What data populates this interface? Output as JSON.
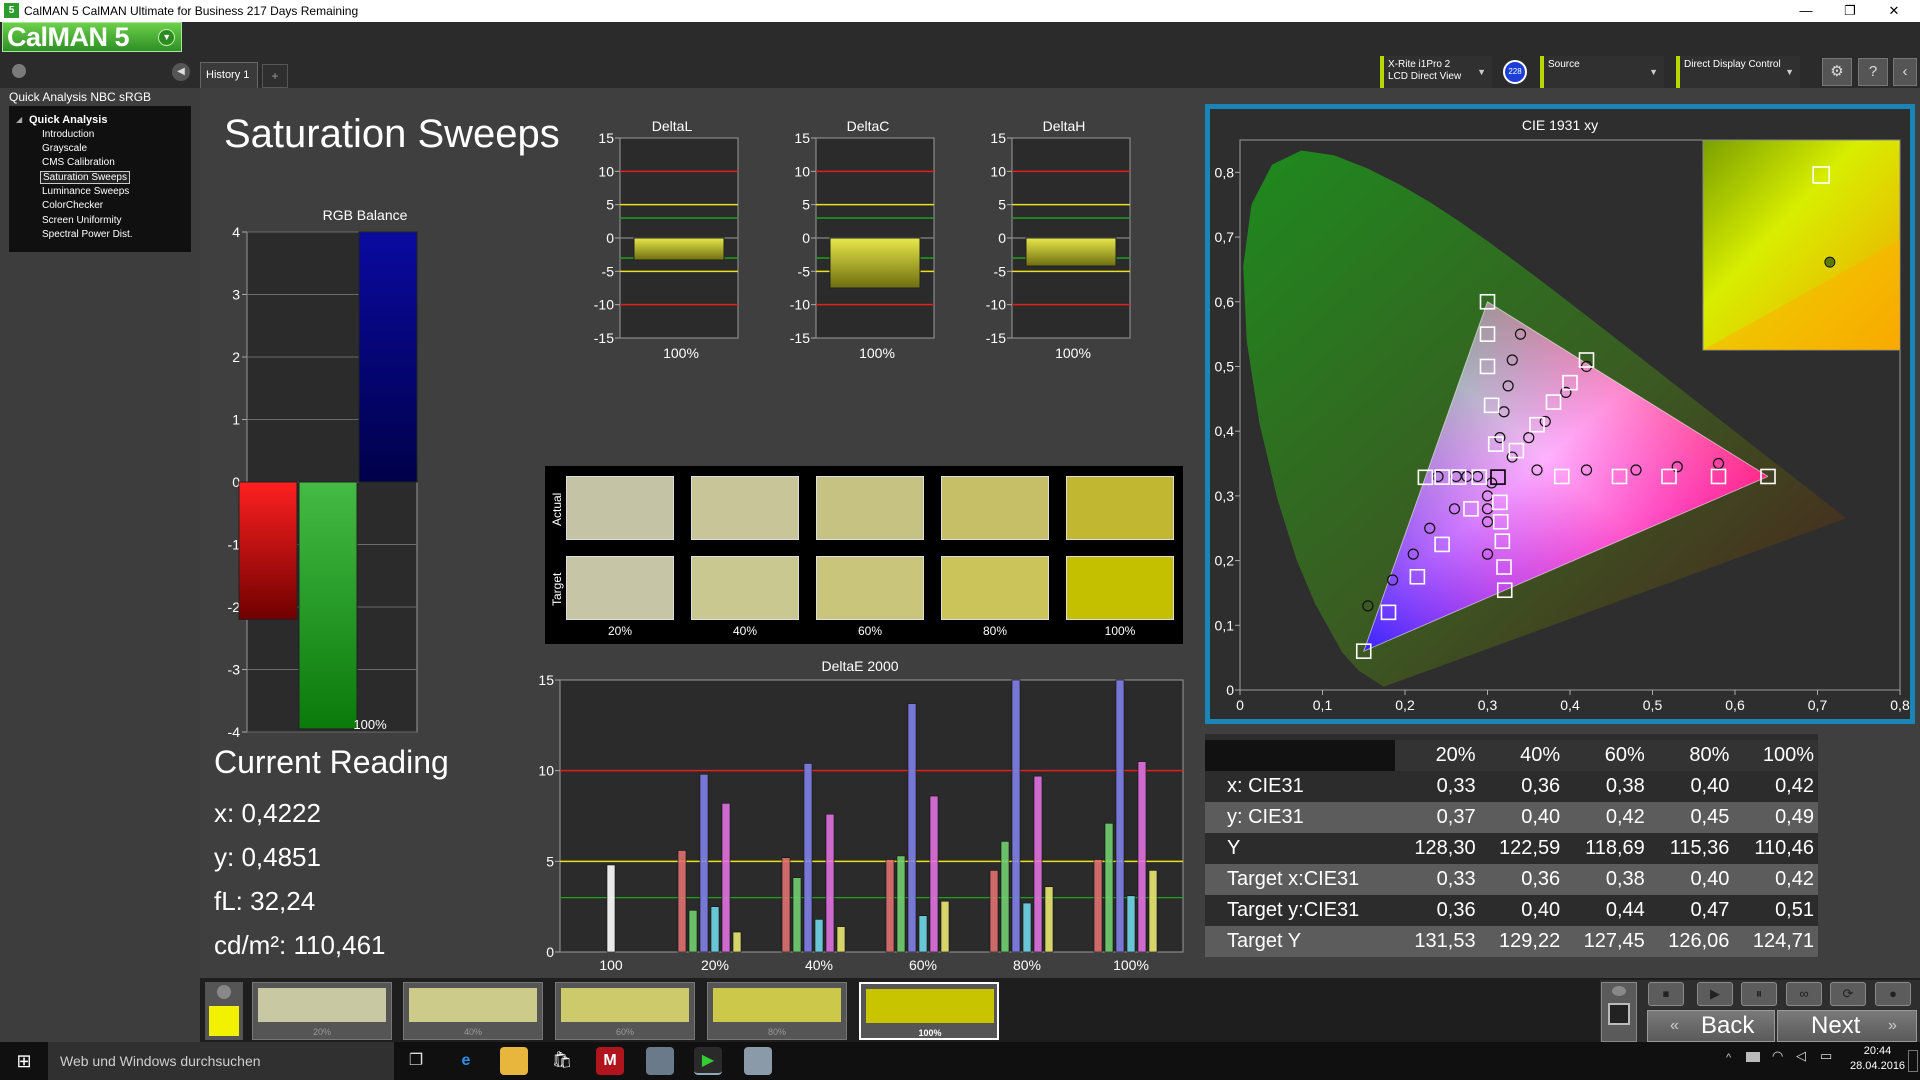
{
  "window": {
    "title": "CalMAN 5 CalMAN Ultimate for Business 217 Days Remaining",
    "app_icon": "5",
    "minimize": "—",
    "maximize": "❐",
    "close": "✕"
  },
  "logo": {
    "text": "CalMAN 5",
    "dropdown_icon": "chevron-down-icon"
  },
  "tabs": {
    "history": "History 1",
    "add": "+"
  },
  "devices": {
    "meter_line1": "X-Rite i1Pro 2",
    "meter_line2": "LCD Direct View",
    "meter_badge": "228",
    "source": "Source",
    "display": "Direct Display Control"
  },
  "toolbar": {
    "settings": "⚙",
    "help": "?",
    "collapse": "‹"
  },
  "left": {
    "workflow_title": "Quick Analysis NBC sRGB",
    "tree_head": "Quick Analysis",
    "items": [
      "Introduction",
      "Grayscale",
      "CMS Calibration",
      "Saturation Sweeps",
      "Luminance Sweeps",
      "ColorChecker",
      "Screen Uniformity",
      "Spectral Power Dist."
    ],
    "selected_index": 3
  },
  "page": {
    "title": "Saturation Sweeps"
  },
  "rgb_balance": {
    "title": "RGB Balance",
    "y_ticks": [
      "4",
      "3",
      "2",
      "1",
      "0",
      "-1",
      "-2",
      "-3",
      "-4"
    ],
    "xlabel": "100%",
    "values": {
      "red": -2.2,
      "green": -3.95,
      "blue": 4.0
    }
  },
  "delta_charts": {
    "y_ticks": [
      "15",
      "10",
      "5",
      "0",
      "-5",
      "-10",
      "-15"
    ],
    "xlabel": "100%",
    "items": [
      {
        "title": "DeltaL",
        "low": -3.3,
        "high": 0
      },
      {
        "title": "DeltaC",
        "low": -7.5,
        "high": 0
      },
      {
        "title": "DeltaH",
        "low": -4.2,
        "high": 0
      }
    ]
  },
  "swatches": {
    "actual_label": "Actual",
    "target_label": "Target",
    "labels": [
      "20%",
      "40%",
      "60%",
      "80%",
      "100%"
    ],
    "actual_colors": [
      "#c4c3a6",
      "#c8c598",
      "#c6c281",
      "#c6bf68",
      "#c2b730"
    ],
    "target_colors": [
      "#c6c5a6",
      "#cac891",
      "#c9c57a",
      "#cac45a",
      "#c4c000"
    ]
  },
  "current_reading": {
    "title": "Current Reading",
    "x": "x: 0,4222",
    "y": "y: 0,4851",
    "fl": "fL: 32,24",
    "cdm": "cd/m²: 110,461"
  },
  "chart_data": [
    {
      "type": "bar",
      "title": "DeltaE 2000",
      "categories": [
        "100",
        "20%",
        "40%",
        "60%",
        "80%",
        "100%"
      ],
      "ylim": [
        0,
        15
      ],
      "y_ticks": [
        "15",
        "10",
        "5",
        "0"
      ],
      "series": [
        {
          "color": "#ffffff",
          "values": [
            4.8,
            null,
            null,
            null,
            null,
            null
          ]
        },
        {
          "color": "#e07070",
          "values": [
            null,
            5.6,
            5.2,
            5.1,
            4.5,
            5.1
          ]
        },
        {
          "color": "#70d070",
          "values": [
            null,
            2.3,
            4.1,
            5.3,
            6.1,
            7.1
          ]
        },
        {
          "color": "#8080e8",
          "values": [
            null,
            9.8,
            10.4,
            13.7,
            15,
            15
          ]
        },
        {
          "color": "#70d8e8",
          "values": [
            null,
            2.5,
            1.8,
            2.0,
            2.7,
            3.1
          ]
        },
        {
          "color": "#e070e0",
          "values": [
            null,
            8.2,
            7.6,
            8.6,
            9.7,
            10.5
          ]
        },
        {
          "color": "#e8e870",
          "values": [
            null,
            1.1,
            1.4,
            2.8,
            3.6,
            4.5
          ]
        }
      ],
      "threshold_lines": [
        10,
        5,
        3
      ]
    },
    {
      "type": "scatter",
      "title": "CIE 1931 xy",
      "xlim": [
        0,
        0.8
      ],
      "ylim": [
        0,
        0.85
      ],
      "x_ticks": [
        "0",
        "0,1",
        "0,2",
        "0,3",
        "0,4",
        "0,5",
        "0,6",
        "0,7",
        "0,8"
      ],
      "y_ticks": [
        "0",
        "0,1",
        "0,2",
        "0,3",
        "0,4",
        "0,5",
        "0,6",
        "0,7",
        "0,8"
      ],
      "gamut": [
        [
          0.64,
          0.33
        ],
        [
          0.3,
          0.6
        ],
        [
          0.15,
          0.06
        ]
      ],
      "white": [
        0.3127,
        0.329
      ],
      "targets_white": [
        [
          0.3,
          0.6
        ],
        [
          0.3,
          0.55
        ],
        [
          0.3,
          0.5
        ],
        [
          0.305,
          0.44
        ],
        [
          0.31,
          0.38
        ],
        [
          0.64,
          0.33
        ],
        [
          0.58,
          0.33
        ],
        [
          0.52,
          0.33
        ],
        [
          0.46,
          0.33
        ],
        [
          0.39,
          0.33
        ],
        [
          0.15,
          0.06
        ],
        [
          0.18,
          0.12
        ],
        [
          0.215,
          0.175
        ],
        [
          0.245,
          0.225
        ],
        [
          0.28,
          0.28
        ],
        [
          0.42,
          0.51
        ],
        [
          0.4,
          0.475
        ],
        [
          0.38,
          0.445
        ],
        [
          0.36,
          0.41
        ],
        [
          0.335,
          0.37
        ],
        [
          0.2247,
          0.3287
        ],
        [
          0.245,
          0.329
        ],
        [
          0.265,
          0.329
        ],
        [
          0.29,
          0.329
        ],
        [
          0.3209,
          0.1542
        ],
        [
          0.32,
          0.19
        ],
        [
          0.318,
          0.23
        ],
        [
          0.316,
          0.26
        ],
        [
          0.315,
          0.29
        ]
      ],
      "measured": [
        [
          0.34,
          0.55
        ],
        [
          0.33,
          0.51
        ],
        [
          0.325,
          0.47
        ],
        [
          0.32,
          0.43
        ],
        [
          0.315,
          0.39
        ],
        [
          0.58,
          0.35
        ],
        [
          0.53,
          0.345
        ],
        [
          0.48,
          0.34
        ],
        [
          0.42,
          0.34
        ],
        [
          0.36,
          0.34
        ],
        [
          0.155,
          0.13
        ],
        [
          0.185,
          0.17
        ],
        [
          0.21,
          0.21
        ],
        [
          0.23,
          0.25
        ],
        [
          0.26,
          0.28
        ],
        [
          0.42,
          0.5
        ],
        [
          0.395,
          0.46
        ],
        [
          0.37,
          0.415
        ],
        [
          0.35,
          0.39
        ],
        [
          0.33,
          0.36
        ],
        [
          0.24,
          0.33
        ],
        [
          0.262,
          0.33
        ],
        [
          0.275,
          0.33
        ],
        [
          0.288,
          0.33
        ],
        [
          0.3,
          0.21
        ],
        [
          0.3,
          0.26
        ],
        [
          0.3,
          0.28
        ],
        [
          0.3,
          0.3
        ],
        [
          0.305,
          0.32
        ]
      ],
      "inset_target": [
        0.42,
        0.51
      ],
      "inset_measured": [
        0.4222,
        0.4851
      ]
    },
    {
      "type": "table",
      "columns": [
        "",
        "20%",
        "40%",
        "60%",
        "80%",
        "100%"
      ],
      "rows": [
        [
          "x: CIE31",
          "0,33",
          "0,36",
          "0,38",
          "0,40",
          "0,42"
        ],
        [
          "y: CIE31",
          "0,37",
          "0,40",
          "0,42",
          "0,45",
          "0,49"
        ],
        [
          "Y",
          "128,30",
          "122,59",
          "118,69",
          "115,36",
          "110,46"
        ],
        [
          "Target x:CIE31",
          "0,33",
          "0,36",
          "0,38",
          "0,40",
          "0,42"
        ],
        [
          "Target y:CIE31",
          "0,36",
          "0,40",
          "0,44",
          "0,47",
          "0,51"
        ],
        [
          "Target Y",
          "131,53",
          "129,22",
          "127,45",
          "126,06",
          "124,71"
        ]
      ]
    }
  ],
  "bottom": {
    "current_color": "#f2f200",
    "patches": [
      {
        "label": "20%",
        "color": "#c8c8a2"
      },
      {
        "label": "40%",
        "color": "#cccb8a"
      },
      {
        "label": "60%",
        "color": "#cdca6c"
      },
      {
        "label": "80%",
        "color": "#cbc84a"
      },
      {
        "label": "100%",
        "color": "#c8c400"
      }
    ],
    "selected_index": 4,
    "back": "Back",
    "next": "Next",
    "controls": [
      "⏹",
      "▶",
      "⏸",
      "∞",
      "⟳",
      "●"
    ]
  },
  "taskbar": {
    "search_placeholder": "Web und Windows durchsuchen",
    "time": "20:44",
    "date": "28.04.2016"
  }
}
